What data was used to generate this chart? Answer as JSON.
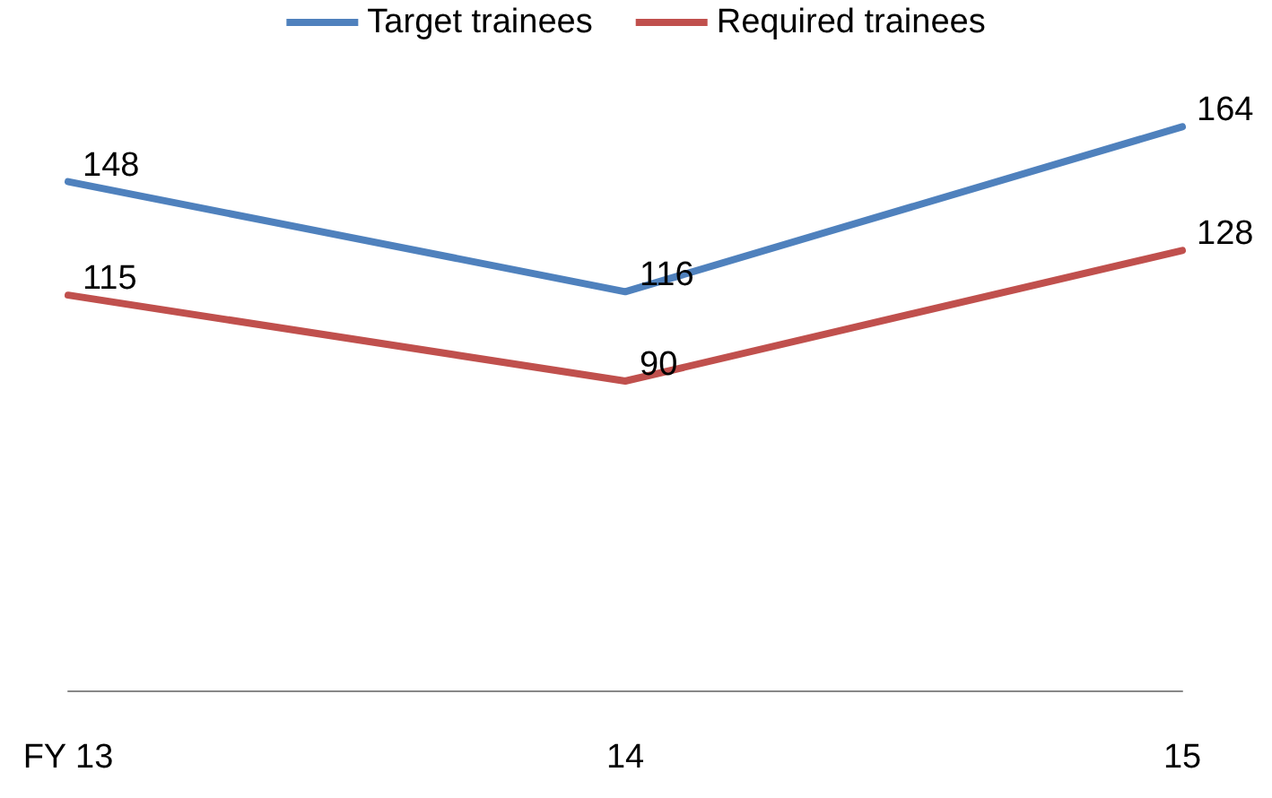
{
  "chart_data": {
    "type": "line",
    "categories": [
      "FY 13",
      "14",
      "15"
    ],
    "series": [
      {
        "name": "Target trainees",
        "color": "#4f81bd",
        "values": [
          148,
          116,
          164
        ]
      },
      {
        "name": "Required trainees",
        "color": "#c0504d",
        "values": [
          115,
          90,
          128
        ]
      }
    ],
    "tick_labels": "x",
    "grid": false,
    "legend": "top",
    "marker": "none",
    "line_style": "solid",
    "data_labels": true
  }
}
